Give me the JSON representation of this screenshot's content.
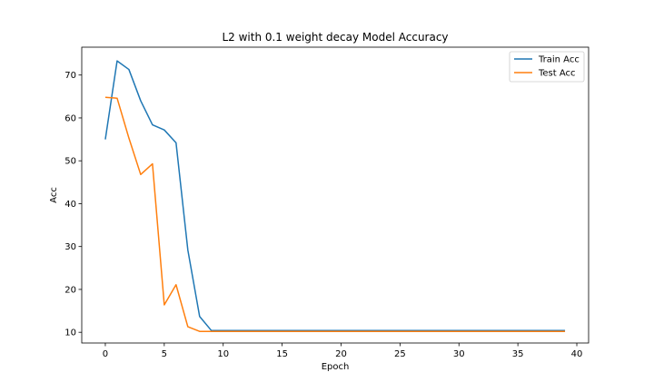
{
  "chart_data": {
    "type": "line",
    "title": "L2 with 0.1 weight decay Model Accuracy",
    "xlabel": "Epoch",
    "ylabel": "Acc",
    "xlim": [
      -2,
      41
    ],
    "ylim": [
      7.5,
      76.5
    ],
    "xticks": [
      0,
      5,
      10,
      15,
      20,
      25,
      30,
      35,
      40
    ],
    "yticks": [
      10,
      20,
      30,
      40,
      50,
      60,
      70
    ],
    "grid": false,
    "legend_position": "upper right",
    "x": [
      0,
      1,
      2,
      3,
      4,
      5,
      6,
      7,
      8,
      9,
      10,
      11,
      12,
      13,
      14,
      15,
      16,
      17,
      18,
      19,
      20,
      21,
      22,
      23,
      24,
      25,
      26,
      27,
      28,
      29,
      30,
      31,
      32,
      33,
      34,
      35,
      36,
      37,
      38,
      39
    ],
    "series": [
      {
        "name": "Train Acc",
        "color": "#1f77b4",
        "values": [
          55.0,
          73.3,
          71.3,
          64.0,
          58.4,
          57.2,
          54.2,
          29.2,
          13.7,
          10.4,
          10.4,
          10.4,
          10.4,
          10.4,
          10.4,
          10.4,
          10.4,
          10.4,
          10.4,
          10.4,
          10.4,
          10.4,
          10.4,
          10.4,
          10.4,
          10.4,
          10.4,
          10.4,
          10.4,
          10.4,
          10.4,
          10.4,
          10.4,
          10.4,
          10.4,
          10.4,
          10.4,
          10.4,
          10.4,
          10.4
        ]
      },
      {
        "name": "Test Acc",
        "color": "#ff7f0e",
        "values": [
          64.8,
          64.6,
          55.3,
          46.8,
          49.3,
          16.4,
          21.1,
          11.3,
          10.2,
          10.2,
          10.2,
          10.2,
          10.2,
          10.2,
          10.2,
          10.2,
          10.2,
          10.2,
          10.2,
          10.2,
          10.2,
          10.2,
          10.2,
          10.2,
          10.2,
          10.2,
          10.2,
          10.2,
          10.2,
          10.2,
          10.2,
          10.2,
          10.2,
          10.2,
          10.2,
          10.2,
          10.2,
          10.2,
          10.2,
          10.2
        ]
      }
    ]
  }
}
